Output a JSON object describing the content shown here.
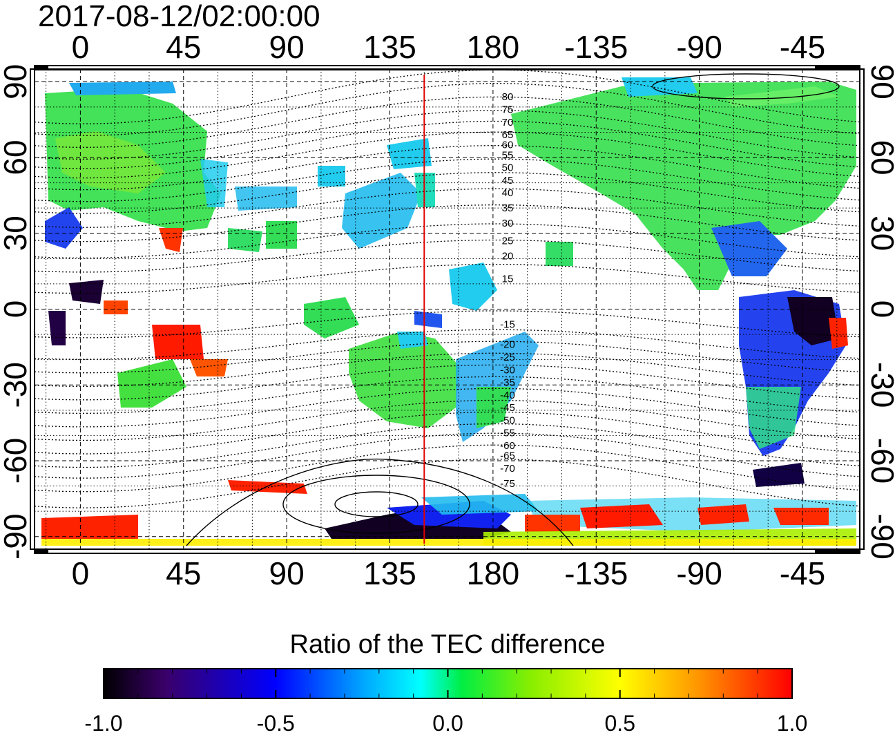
{
  "title": "2017-08-12/02:00:00",
  "map": {
    "lon_ticks_top": [
      "0",
      "45",
      "90",
      "135",
      "180",
      "-135",
      "-90",
      "-45"
    ],
    "lon_ticks_bottom": [
      "0",
      "45",
      "90",
      "135",
      "180",
      "-135",
      "-90",
      "-45"
    ],
    "lat_ticks_left": [
      "90",
      "60",
      "30",
      "0",
      "-30",
      "-60",
      "-90"
    ],
    "lat_ticks_right": [
      "90",
      "60",
      "30",
      "0",
      "-30",
      "-60",
      "-90"
    ],
    "lon_tick_values": [
      0,
      45,
      90,
      135,
      180,
      225,
      270,
      315
    ],
    "lat_tick_values": [
      90,
      60,
      30,
      0,
      -30,
      -60,
      -90
    ],
    "lon_range": [
      -20,
      340
    ],
    "lat_range": [
      -95,
      95
    ],
    "meridian_line_lon": 150,
    "meridian_line_color": "#e00000",
    "contour_labels": [
      {
        "text": "80",
        "lat": 84
      },
      {
        "text": "75",
        "lat": 79
      },
      {
        "text": "70",
        "lat": 74
      },
      {
        "text": "65",
        "lat": 69
      },
      {
        "text": "60",
        "lat": 65
      },
      {
        "text": "55",
        "lat": 61
      },
      {
        "text": "50",
        "lat": 56
      },
      {
        "text": "45",
        "lat": 51
      },
      {
        "text": "40",
        "lat": 46
      },
      {
        "text": "35",
        "lat": 40
      },
      {
        "text": "30",
        "lat": 34
      },
      {
        "text": "25",
        "lat": 27
      },
      {
        "text": "20",
        "lat": 21
      },
      {
        "text": "15",
        "lat": 12
      },
      {
        "text": "-15",
        "lat": -6
      },
      {
        "text": "-20",
        "lat": -14
      },
      {
        "text": "-25",
        "lat": -19
      },
      {
        "text": "-30",
        "lat": -24
      },
      {
        "text": "-35",
        "lat": -29
      },
      {
        "text": "-40",
        "lat": -34
      },
      {
        "text": "-45",
        "lat": -39
      },
      {
        "text": "-50",
        "lat": -44
      },
      {
        "text": "-55",
        "lat": -49
      },
      {
        "text": "-60",
        "lat": -54
      },
      {
        "text": "-65",
        "lat": -58
      },
      {
        "text": "-70",
        "lat": -63
      },
      {
        "text": "-75",
        "lat": -69
      }
    ]
  },
  "colorbar": {
    "title": "Ratio of the TEC difference",
    "ticks": [
      "-1.0",
      "-0.5",
      "0.0",
      "0.5",
      "1.0"
    ],
    "tick_values": [
      -1.0,
      -0.5,
      0.0,
      0.5,
      1.0
    ],
    "range": [
      -1.0,
      1.0
    ],
    "colors": [
      "#000000",
      "#3a006a",
      "#0000ff",
      "#00aaff",
      "#00ffff",
      "#00ee44",
      "#88ee00",
      "#ffff00",
      "#ff9900",
      "#ff0000"
    ]
  }
}
